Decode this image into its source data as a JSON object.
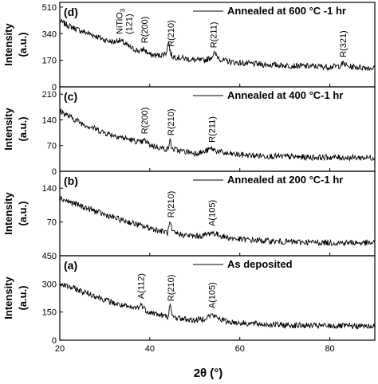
{
  "chart_data": {
    "type": "line",
    "x_axis": {
      "label": "2θ (°)",
      "range": [
        20,
        90
      ],
      "ticks": [
        20,
        40,
        60,
        80
      ]
    },
    "y_axis_label": "Intensity",
    "y_axis_unit": "(a.u.)",
    "panels": [
      {
        "id": "d",
        "panel_label": "(d)",
        "legend": "Annealed at 600 °C -1 hr",
        "ylim": [
          0,
          540
        ],
        "yticks": [
          0,
          170,
          340,
          510
        ],
        "series": {
          "x": [
            20,
            22,
            25,
            28,
            30,
            32,
            33,
            34,
            36,
            38,
            38.6,
            39.2,
            40,
            42,
            43.6,
            44.2,
            44.6,
            45,
            46,
            48,
            50,
            52,
            53.5,
            54.3,
            55,
            56,
            58,
            60,
            65,
            70,
            75,
            80,
            82,
            83,
            84,
            86,
            90
          ],
          "y": [
            420,
            390,
            355,
            325,
            300,
            285,
            300,
            285,
            245,
            225,
            245,
            225,
            205,
            200,
            215,
            290,
            215,
            195,
            190,
            180,
            170,
            168,
            185,
            215,
            195,
            170,
            160,
            152,
            143,
            137,
            132,
            128,
            132,
            150,
            130,
            126,
            120
          ]
        },
        "peaks": [
          {
            "label": "NiTiO",
            "sub": "3",
            "label2": "(121)",
            "x": 33.2
          },
          {
            "label": "R(200)",
            "x": 38.8
          },
          {
            "label": "R(210)",
            "x": 44.6
          },
          {
            "label": "R(211)",
            "x": 54.1
          },
          {
            "label": "R(321)",
            "x": 82.9
          }
        ]
      },
      {
        "id": "c",
        "panel_label": "(c)",
        "legend": "Annealed at 400 °C-1 hr",
        "ylim": [
          0,
          230
        ],
        "yticks": [
          0,
          70,
          140,
          210
        ],
        "series": {
          "x": [
            20,
            22,
            25,
            28,
            30,
            33,
            36,
            38,
            38.8,
            40,
            42,
            44,
            44.5,
            45,
            47,
            50,
            52,
            53.6,
            55,
            57,
            60,
            65,
            70,
            75,
            80,
            85,
            90
          ],
          "y": [
            165,
            150,
            130,
            115,
            105,
            95,
            85,
            78,
            84,
            72,
            65,
            60,
            85,
            60,
            55,
            50,
            52,
            62,
            55,
            48,
            45,
            42,
            40,
            38,
            38,
            37,
            37
          ]
        },
        "peaks": [
          {
            "label": "R(200)",
            "x": 38.8
          },
          {
            "label": "R(210)",
            "x": 44.6
          },
          {
            "label": "R(211)",
            "x": 53.8
          }
        ]
      },
      {
        "id": "b",
        "panel_label": "(b)",
        "legend": "Annealed at 200 °C-1 hr",
        "ylim": [
          0,
          175
        ],
        "yticks": [
          70,
          140
        ],
        "series": {
          "x": [
            20,
            22,
            25,
            28,
            30,
            33,
            36,
            38,
            40,
            42,
            44,
            44.5,
            45,
            47,
            50,
            52,
            53.8,
            55,
            57,
            60,
            65,
            70,
            75,
            80,
            85,
            90
          ],
          "y": [
            120,
            112,
            102,
            92,
            85,
            76,
            68,
            62,
            58,
            52,
            48,
            70,
            48,
            44,
            40,
            42,
            48,
            44,
            38,
            34,
            31,
            29,
            28,
            27,
            27,
            26
          ]
        },
        "peaks": [
          {
            "label": "R(210)",
            "x": 44.6
          },
          {
            "label": "A(105)",
            "x": 53.8
          }
        ]
      },
      {
        "id": "a",
        "panel_label": "(a)",
        "legend": "As deposited",
        "ylim": [
          0,
          450
        ],
        "yticks": [
          0,
          150,
          300,
          450
        ],
        "series": {
          "x": [
            20,
            22,
            25,
            28,
            30,
            33,
            36,
            37.5,
            38.2,
            39,
            40,
            42,
            44,
            44.5,
            45,
            47,
            50,
            52,
            53.8,
            55,
            57,
            60,
            65,
            70,
            75,
            80,
            85,
            90
          ],
          "y": [
            300,
            285,
            260,
            235,
            215,
            190,
            170,
            175,
            190,
            160,
            150,
            135,
            125,
            185,
            125,
            115,
            105,
            115,
            135,
            120,
            100,
            92,
            85,
            80,
            78,
            76,
            75,
            74
          ]
        },
        "peaks": [
          {
            "label": "A(112)",
            "x": 38.0
          },
          {
            "label": "R(210)",
            "x": 44.6
          },
          {
            "label": "A(105)",
            "x": 53.8
          }
        ]
      }
    ]
  }
}
